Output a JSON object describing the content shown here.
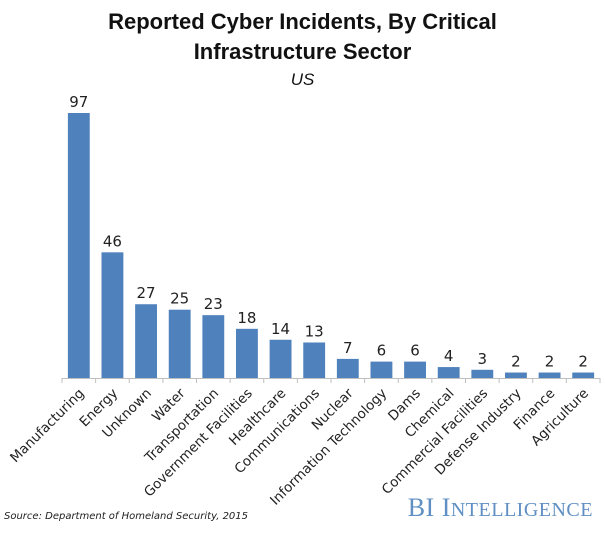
{
  "chart_data": {
    "type": "bar",
    "title": "Reported Cyber Incidents, By Critical Infrastructure Sector",
    "title_lines": [
      "Reported Cyber Incidents, By Critical",
      "Infrastructure Sector"
    ],
    "subtitle": "US",
    "xlabel": "",
    "ylabel": "",
    "ylim": [
      0,
      97
    ],
    "grid": false,
    "legend": null,
    "categories": [
      "Manufacturing",
      "Energy",
      "Unknown",
      "Water",
      "Transportation",
      "Government Facilities",
      "Healthcare",
      "Communications",
      "Nuclear",
      "Information Technology",
      "Dams",
      "Chemical",
      "Commercial Facilities",
      "Defense Industry",
      "Finance",
      "Agriculture"
    ],
    "values": [
      97,
      46,
      27,
      25,
      23,
      18,
      14,
      13,
      7,
      6,
      6,
      4,
      3,
      2,
      2,
      2
    ],
    "bar_color": "#4f81bd",
    "source": "Source: Department of Homeland Security, 2015"
  },
  "branding": {
    "first": "BI",
    "second_initial": "I",
    "second_rest": "NTELLIGENCE",
    "color": "#5f8fc3"
  }
}
